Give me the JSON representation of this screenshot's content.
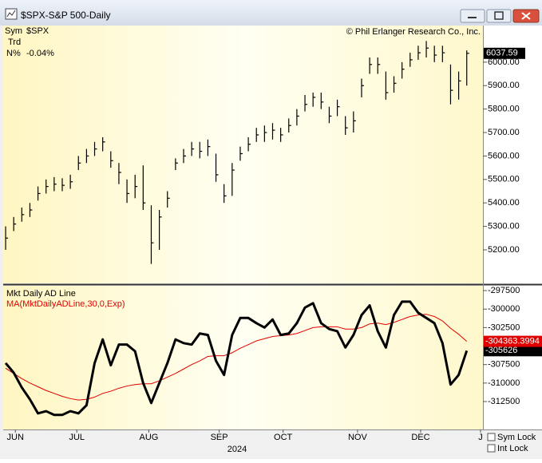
{
  "window": {
    "title": "$SPX-S&P 500-Daily"
  },
  "info": {
    "sym_label": "Sym",
    "sym_value": "$SPX",
    "trd_label": "Trd",
    "n_label": "N%",
    "n_value": "-0.04%",
    "copyright": "© Phil Erlanger Research Co., Inc."
  },
  "controls": {
    "sym_lock": "Sym Lock",
    "int_lock": "Int Lock"
  },
  "year_label": "2024",
  "chart_data": [
    {
      "type": "ohlc",
      "color": "#000000",
      "x": [
        0,
        1,
        2,
        3,
        4,
        5,
        6,
        7,
        8,
        9,
        10,
        11,
        12,
        13,
        14,
        15,
        16,
        17,
        18,
        19,
        20,
        21,
        22,
        23,
        24,
        25,
        26,
        27,
        28,
        29,
        30,
        31,
        32,
        33,
        34,
        35,
        36,
        37,
        38,
        39,
        40,
        41,
        42,
        43,
        44,
        45,
        46,
        47,
        48,
        49,
        50,
        51,
        52,
        53,
        54,
        55,
        56,
        57
      ],
      "high": [
        5300,
        5340,
        5380,
        5400,
        5470,
        5500,
        5510,
        5505,
        5520,
        5600,
        5630,
        5660,
        5680,
        5620,
        5570,
        5500,
        5520,
        5560,
        5390,
        5370,
        5450,
        5590,
        5630,
        5660,
        5660,
        5670,
        5610,
        5480,
        5570,
        5640,
        5680,
        5720,
        5730,
        5740,
        5720,
        5760,
        5800,
        5860,
        5870,
        5870,
        5810,
        5840,
        5770,
        5790,
        5930,
        6020,
        6020,
        5960,
        5940,
        6000,
        6040,
        6070,
        6090,
        6070,
        6070,
        5990,
        5960,
        6050
      ],
      "low": [
        5200,
        5280,
        5320,
        5340,
        5410,
        5440,
        5450,
        5450,
        5460,
        5540,
        5570,
        5600,
        5620,
        5550,
        5480,
        5400,
        5420,
        5370,
        5140,
        5200,
        5380,
        5540,
        5570,
        5600,
        5590,
        5600,
        5490,
        5400,
        5430,
        5580,
        5620,
        5660,
        5660,
        5670,
        5660,
        5700,
        5730,
        5790,
        5810,
        5800,
        5740,
        5770,
        5690,
        5700,
        5850,
        5950,
        5950,
        5840,
        5870,
        5930,
        5980,
        6010,
        6020,
        6000,
        6000,
        5820,
        5840,
        5900
      ],
      "close": [
        5250,
        5310,
        5350,
        5370,
        5440,
        5470,
        5480,
        5475,
        5490,
        5570,
        5600,
        5630,
        5660,
        5580,
        5530,
        5440,
        5470,
        5400,
        5230,
        5340,
        5420,
        5570,
        5600,
        5630,
        5620,
        5640,
        5520,
        5430,
        5540,
        5610,
        5650,
        5690,
        5700,
        5710,
        5690,
        5730,
        5770,
        5820,
        5850,
        5830,
        5770,
        5810,
        5720,
        5750,
        5900,
        5990,
        5990,
        5870,
        5910,
        5970,
        6010,
        6040,
        6060,
        6030,
        6040,
        5880,
        5920,
        6037.59
      ],
      "xlim": [
        -0.3,
        59
      ],
      "ylim": [
        5057,
        6156
      ],
      "yticks": [
        {
          "value": 5200,
          "label": "5200.00"
        },
        {
          "value": 5300,
          "label": "5300.00"
        },
        {
          "value": 5400,
          "label": "5400.00"
        },
        {
          "value": 5500,
          "label": "5500.00"
        },
        {
          "value": 5600,
          "label": "5600.00"
        },
        {
          "value": 5700,
          "label": "5700.00"
        },
        {
          "value": 5800,
          "label": "5800.00"
        },
        {
          "value": 5900,
          "label": "5900.00"
        },
        {
          "value": 6000,
          "label": "6000.00"
        }
      ]
    },
    {
      "type": "line",
      "x": [
        0,
        1,
        2,
        3,
        4,
        5,
        6,
        7,
        8,
        9,
        10,
        11,
        12,
        13,
        14,
        15,
        16,
        17,
        18,
        19,
        20,
        21,
        22,
        23,
        24,
        25,
        26,
        27,
        28,
        29,
        30,
        31,
        32,
        33,
        34,
        35,
        36,
        37,
        38,
        39,
        40,
        41,
        42,
        43,
        44,
        45,
        46,
        47,
        48,
        49,
        50,
        51,
        52,
        53,
        54,
        55,
        56,
        57
      ],
      "series": [
        {
          "name": "Mkt Daily AD Line",
          "color": "#000000",
          "values": [
            -307300,
            -308600,
            -310600,
            -312200,
            -314100,
            -313800,
            -314300,
            -314300,
            -313800,
            -314100,
            -313000,
            -307300,
            -304100,
            -307600,
            -304800,
            -304800,
            -305700,
            -310000,
            -312700,
            -310000,
            -307300,
            -304100,
            -304600,
            -304800,
            -303300,
            -303500,
            -307000,
            -308900,
            -303500,
            -301200,
            -301200,
            -301900,
            -302500,
            -301400,
            -303500,
            -303300,
            -301900,
            -299800,
            -299200,
            -301900,
            -302700,
            -303000,
            -305200,
            -303500,
            -300800,
            -299500,
            -303000,
            -305200,
            -300800,
            -299000,
            -299000,
            -300500,
            -301200,
            -301900,
            -304600,
            -310200,
            -308900,
            -305626
          ]
        },
        {
          "name": "MA(MktDailyADLine,30,0,Exp)",
          "color": "#e00000",
          "values": [
            -308000,
            -308700,
            -309400,
            -310000,
            -310500,
            -311000,
            -311400,
            -311800,
            -312100,
            -312300,
            -312200,
            -311900,
            -311400,
            -311100,
            -310700,
            -310400,
            -310200,
            -310100,
            -310100,
            -309700,
            -309200,
            -308700,
            -308100,
            -307500,
            -307000,
            -306400,
            -306300,
            -306300,
            -305900,
            -305300,
            -304800,
            -304300,
            -304000,
            -303700,
            -303600,
            -303500,
            -303300,
            -302900,
            -302500,
            -302400,
            -302400,
            -302400,
            -302700,
            -302700,
            -302500,
            -302000,
            -301900,
            -302100,
            -301800,
            -301400,
            -301000,
            -300800,
            -300700,
            -301000,
            -301600,
            -302600,
            -303400,
            -304363.3994
          ]
        }
      ],
      "xlim": [
        -0.3,
        59
      ],
      "ylim": [
        -316275,
        -296850
      ],
      "yticks": [
        -297500,
        -300000,
        -302500,
        -305000,
        -307500,
        -310000,
        -312500
      ],
      "xticks": [
        {
          "value": 1.2,
          "label": "JUN"
        },
        {
          "value": 8.8,
          "label": "JUL"
        },
        {
          "value": 17.7,
          "label": "AUG"
        },
        {
          "value": 26.4,
          "label": "SEP"
        },
        {
          "value": 34.3,
          "label": "OCT"
        },
        {
          "value": 43.5,
          "label": "NOV"
        },
        {
          "value": 51.3,
          "label": "DEC"
        },
        {
          "value": 58.7,
          "label": "J"
        }
      ]
    }
  ]
}
